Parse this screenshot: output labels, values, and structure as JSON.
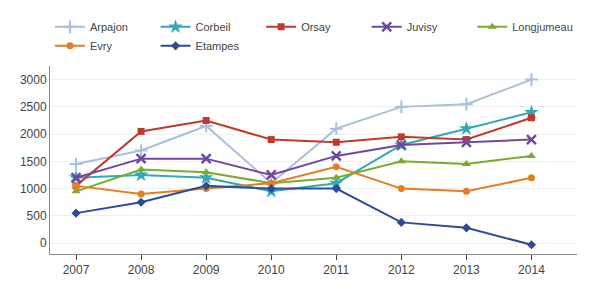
{
  "chart_data": {
    "type": "line",
    "x": [
      2007,
      2008,
      2009,
      2010,
      2011,
      2012,
      2013,
      2014
    ],
    "series": [
      {
        "name": "Arpajon",
        "color": "#a8bfdf",
        "marker": "plus",
        "values": [
          1450,
          1700,
          2150,
          1100,
          2100,
          2500,
          2550,
          3000
        ]
      },
      {
        "name": "Corbeil",
        "color": "#31a9b8",
        "marker": "star",
        "values": [
          1200,
          1250,
          1200,
          950,
          1100,
          1800,
          2100,
          2400
        ]
      },
      {
        "name": "Orsay",
        "color": "#c0392b",
        "marker": "square",
        "values": [
          1050,
          2050,
          2250,
          1900,
          1850,
          1950,
          1900,
          2300
        ]
      },
      {
        "name": "Juvisy",
        "color": "#7048a0",
        "marker": "x",
        "values": [
          1200,
          1550,
          1550,
          1250,
          1600,
          1800,
          1850,
          1900
        ]
      },
      {
        "name": "Longjumeau",
        "color": "#7aaa2e",
        "marker": "triangle",
        "values": [
          950,
          1350,
          1300,
          1100,
          1200,
          1500,
          1450,
          1600
        ]
      },
      {
        "name": "Evry",
        "color": "#e08020",
        "marker": "circle",
        "values": [
          1050,
          900,
          1000,
          1100,
          1400,
          1000,
          950,
          1200
        ]
      },
      {
        "name": "Etampes",
        "color": "#2e4b9a",
        "marker": "diamond",
        "values": [
          550,
          750,
          1050,
          1000,
          1000,
          380,
          280,
          -30
        ]
      }
    ],
    "xlim": [
      2006.6,
      2014.7
    ],
    "xticks": [
      2007,
      2008,
      2009,
      2010,
      2011,
      2012,
      2013,
      2014
    ],
    "ylim": [
      -200,
      3250
    ],
    "yticks": [
      0,
      500,
      1000,
      1500,
      2000,
      2500,
      3000
    ],
    "grid": "y",
    "legend": "top"
  }
}
